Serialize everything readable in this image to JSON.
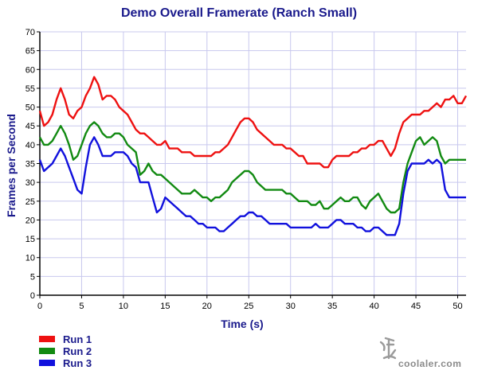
{
  "chart_data": {
    "type": "line",
    "title": "Demo Overall Framerate (Ranch Small)",
    "xlabel": "Time (s)",
    "ylabel": "Frames per Second",
    "xlim": [
      0,
      51
    ],
    "ylim": [
      0,
      70
    ],
    "x_ticks": [
      0,
      5,
      10,
      15,
      20,
      25,
      30,
      35,
      40,
      45,
      50
    ],
    "y_ticks": [
      0,
      5,
      10,
      15,
      20,
      25,
      30,
      35,
      40,
      45,
      50,
      55,
      60,
      65,
      70
    ],
    "grid": true,
    "legend_position": "bottom-left",
    "series": [
      {
        "name": "Run 1",
        "color": "#ee1111",
        "points": [
          [
            0,
            49
          ],
          [
            0.5,
            45
          ],
          [
            1,
            46
          ],
          [
            1.5,
            48
          ],
          [
            2,
            52
          ],
          [
            2.5,
            55
          ],
          [
            3,
            52
          ],
          [
            3.5,
            48
          ],
          [
            4,
            47
          ],
          [
            4.5,
            49
          ],
          [
            5,
            50
          ],
          [
            5.5,
            53
          ],
          [
            6,
            55
          ],
          [
            6.5,
            58
          ],
          [
            7,
            56
          ],
          [
            7.5,
            52
          ],
          [
            8,
            53
          ],
          [
            8.5,
            53
          ],
          [
            9,
            52
          ],
          [
            9.5,
            50
          ],
          [
            10,
            49
          ],
          [
            10.5,
            48
          ],
          [
            11,
            46
          ],
          [
            11.5,
            44
          ],
          [
            12,
            43
          ],
          [
            12.5,
            43
          ],
          [
            13,
            42
          ],
          [
            13.5,
            41
          ],
          [
            14,
            40
          ],
          [
            14.5,
            40
          ],
          [
            15,
            41
          ],
          [
            15.5,
            39
          ],
          [
            16,
            39
          ],
          [
            16.5,
            39
          ],
          [
            17,
            38
          ],
          [
            17.5,
            38
          ],
          [
            18,
            38
          ],
          [
            18.5,
            37
          ],
          [
            19,
            37
          ],
          [
            19.5,
            37
          ],
          [
            20,
            37
          ],
          [
            20.5,
            37
          ],
          [
            21,
            38
          ],
          [
            21.5,
            38
          ],
          [
            22,
            39
          ],
          [
            22.5,
            40
          ],
          [
            23,
            42
          ],
          [
            23.5,
            44
          ],
          [
            24,
            46
          ],
          [
            24.5,
            47
          ],
          [
            25,
            47
          ],
          [
            25.5,
            46
          ],
          [
            26,
            44
          ],
          [
            26.5,
            43
          ],
          [
            27,
            42
          ],
          [
            27.5,
            41
          ],
          [
            28,
            40
          ],
          [
            28.5,
            40
          ],
          [
            29,
            40
          ],
          [
            29.5,
            39
          ],
          [
            30,
            39
          ],
          [
            30.5,
            38
          ],
          [
            31,
            37
          ],
          [
            31.5,
            37
          ],
          [
            32,
            35
          ],
          [
            32.5,
            35
          ],
          [
            33,
            35
          ],
          [
            33.5,
            35
          ],
          [
            34,
            34
          ],
          [
            34.5,
            34
          ],
          [
            35,
            36
          ],
          [
            35.5,
            37
          ],
          [
            36,
            37
          ],
          [
            36.5,
            37
          ],
          [
            37,
            37
          ],
          [
            37.5,
            38
          ],
          [
            38,
            38
          ],
          [
            38.5,
            39
          ],
          [
            39,
            39
          ],
          [
            39.5,
            40
          ],
          [
            40,
            40
          ],
          [
            40.5,
            41
          ],
          [
            41,
            41
          ],
          [
            41.5,
            39
          ],
          [
            42,
            37
          ],
          [
            42.5,
            39
          ],
          [
            43,
            43
          ],
          [
            43.5,
            46
          ],
          [
            44,
            47
          ],
          [
            44.5,
            48
          ],
          [
            45,
            48
          ],
          [
            45.5,
            48
          ],
          [
            46,
            49
          ],
          [
            46.5,
            49
          ],
          [
            47,
            50
          ],
          [
            47.5,
            51
          ],
          [
            48,
            50
          ],
          [
            48.5,
            52
          ],
          [
            49,
            52
          ],
          [
            49.5,
            53
          ],
          [
            50,
            51
          ],
          [
            50.5,
            51
          ],
          [
            51,
            53
          ]
        ]
      },
      {
        "name": "Run 2",
        "color": "#128a12",
        "points": [
          [
            0,
            42
          ],
          [
            0.5,
            40
          ],
          [
            1,
            40
          ],
          [
            1.5,
            41
          ],
          [
            2,
            43
          ],
          [
            2.5,
            45
          ],
          [
            3,
            43
          ],
          [
            3.5,
            40
          ],
          [
            4,
            36
          ],
          [
            4.5,
            37
          ],
          [
            5,
            40
          ],
          [
            5.5,
            43
          ],
          [
            6,
            45
          ],
          [
            6.5,
            46
          ],
          [
            7,
            45
          ],
          [
            7.5,
            43
          ],
          [
            8,
            42
          ],
          [
            8.5,
            42
          ],
          [
            9,
            43
          ],
          [
            9.5,
            43
          ],
          [
            10,
            42
          ],
          [
            10.5,
            40
          ],
          [
            11,
            39
          ],
          [
            11.5,
            38
          ],
          [
            12,
            32
          ],
          [
            12.5,
            33
          ],
          [
            13,
            35
          ],
          [
            13.5,
            33
          ],
          [
            14,
            32
          ],
          [
            14.5,
            32
          ],
          [
            15,
            31
          ],
          [
            15.5,
            30
          ],
          [
            16,
            29
          ],
          [
            16.5,
            28
          ],
          [
            17,
            27
          ],
          [
            17.5,
            27
          ],
          [
            18,
            27
          ],
          [
            18.5,
            28
          ],
          [
            19,
            27
          ],
          [
            19.5,
            26
          ],
          [
            20,
            26
          ],
          [
            20.5,
            25
          ],
          [
            21,
            26
          ],
          [
            21.5,
            26
          ],
          [
            22,
            27
          ],
          [
            22.5,
            28
          ],
          [
            23,
            30
          ],
          [
            23.5,
            31
          ],
          [
            24,
            32
          ],
          [
            24.5,
            33
          ],
          [
            25,
            33
          ],
          [
            25.5,
            32
          ],
          [
            26,
            30
          ],
          [
            26.5,
            29
          ],
          [
            27,
            28
          ],
          [
            27.5,
            28
          ],
          [
            28,
            28
          ],
          [
            28.5,
            28
          ],
          [
            29,
            28
          ],
          [
            29.5,
            27
          ],
          [
            30,
            27
          ],
          [
            30.5,
            26
          ],
          [
            31,
            25
          ],
          [
            31.5,
            25
          ],
          [
            32,
            25
          ],
          [
            32.5,
            24
          ],
          [
            33,
            24
          ],
          [
            33.5,
            25
          ],
          [
            34,
            23
          ],
          [
            34.5,
            23
          ],
          [
            35,
            24
          ],
          [
            35.5,
            25
          ],
          [
            36,
            26
          ],
          [
            36.5,
            25
          ],
          [
            37,
            25
          ],
          [
            37.5,
            26
          ],
          [
            38,
            26
          ],
          [
            38.5,
            24
          ],
          [
            39,
            23
          ],
          [
            39.5,
            25
          ],
          [
            40,
            26
          ],
          [
            40.5,
            27
          ],
          [
            41,
            25
          ],
          [
            41.5,
            23
          ],
          [
            42,
            22
          ],
          [
            42.5,
            22
          ],
          [
            43,
            23
          ],
          [
            43.5,
            30
          ],
          [
            44,
            35
          ],
          [
            44.5,
            38
          ],
          [
            45,
            41
          ],
          [
            45.5,
            42
          ],
          [
            46,
            40
          ],
          [
            46.5,
            41
          ],
          [
            47,
            42
          ],
          [
            47.5,
            41
          ],
          [
            48,
            37
          ],
          [
            48.5,
            35
          ],
          [
            49,
            36
          ],
          [
            49.5,
            36
          ],
          [
            50,
            36
          ],
          [
            50.5,
            36
          ],
          [
            51,
            36
          ]
        ]
      },
      {
        "name": "Run 3",
        "color": "#1111dd",
        "points": [
          [
            0,
            36
          ],
          [
            0.5,
            33
          ],
          [
            1,
            34
          ],
          [
            1.5,
            35
          ],
          [
            2,
            37
          ],
          [
            2.5,
            39
          ],
          [
            3,
            37
          ],
          [
            3.5,
            34
          ],
          [
            4,
            31
          ],
          [
            4.5,
            28
          ],
          [
            5,
            27
          ],
          [
            5.5,
            34
          ],
          [
            6,
            40
          ],
          [
            6.5,
            42
          ],
          [
            7,
            40
          ],
          [
            7.5,
            37
          ],
          [
            8,
            37
          ],
          [
            8.5,
            37
          ],
          [
            9,
            38
          ],
          [
            9.5,
            38
          ],
          [
            10,
            38
          ],
          [
            10.5,
            37
          ],
          [
            11,
            35
          ],
          [
            11.5,
            34
          ],
          [
            12,
            30
          ],
          [
            12.5,
            30
          ],
          [
            13,
            30
          ],
          [
            13.5,
            26
          ],
          [
            14,
            22
          ],
          [
            14.5,
            23
          ],
          [
            15,
            26
          ],
          [
            15.5,
            25
          ],
          [
            16,
            24
          ],
          [
            16.5,
            23
          ],
          [
            17,
            22
          ],
          [
            17.5,
            21
          ],
          [
            18,
            21
          ],
          [
            18.5,
            20
          ],
          [
            19,
            19
          ],
          [
            19.5,
            19
          ],
          [
            20,
            18
          ],
          [
            20.5,
            18
          ],
          [
            21,
            18
          ],
          [
            21.5,
            17
          ],
          [
            22,
            17
          ],
          [
            22.5,
            18
          ],
          [
            23,
            19
          ],
          [
            23.5,
            20
          ],
          [
            24,
            21
          ],
          [
            24.5,
            21
          ],
          [
            25,
            22
          ],
          [
            25.5,
            22
          ],
          [
            26,
            21
          ],
          [
            26.5,
            21
          ],
          [
            27,
            20
          ],
          [
            27.5,
            19
          ],
          [
            28,
            19
          ],
          [
            28.5,
            19
          ],
          [
            29,
            19
          ],
          [
            29.5,
            19
          ],
          [
            30,
            18
          ],
          [
            30.5,
            18
          ],
          [
            31,
            18
          ],
          [
            31.5,
            18
          ],
          [
            32,
            18
          ],
          [
            32.5,
            18
          ],
          [
            33,
            19
          ],
          [
            33.5,
            18
          ],
          [
            34,
            18
          ],
          [
            34.5,
            18
          ],
          [
            35,
            19
          ],
          [
            35.5,
            20
          ],
          [
            36,
            20
          ],
          [
            36.5,
            19
          ],
          [
            37,
            19
          ],
          [
            37.5,
            19
          ],
          [
            38,
            18
          ],
          [
            38.5,
            18
          ],
          [
            39,
            17
          ],
          [
            39.5,
            17
          ],
          [
            40,
            18
          ],
          [
            40.5,
            18
          ],
          [
            41,
            17
          ],
          [
            41.5,
            16
          ],
          [
            42,
            16
          ],
          [
            42.5,
            16
          ],
          [
            43,
            19
          ],
          [
            43.5,
            27
          ],
          [
            44,
            33
          ],
          [
            44.5,
            35
          ],
          [
            45,
            35
          ],
          [
            45.5,
            35
          ],
          [
            46,
            35
          ],
          [
            46.5,
            36
          ],
          [
            47,
            35
          ],
          [
            47.5,
            36
          ],
          [
            48,
            35
          ],
          [
            48.5,
            28
          ],
          [
            49,
            26
          ],
          [
            49.5,
            26
          ],
          [
            50,
            26
          ],
          [
            50.5,
            26
          ],
          [
            51,
            26
          ]
        ]
      }
    ]
  },
  "watermark": {
    "text": "coolaler.com"
  }
}
